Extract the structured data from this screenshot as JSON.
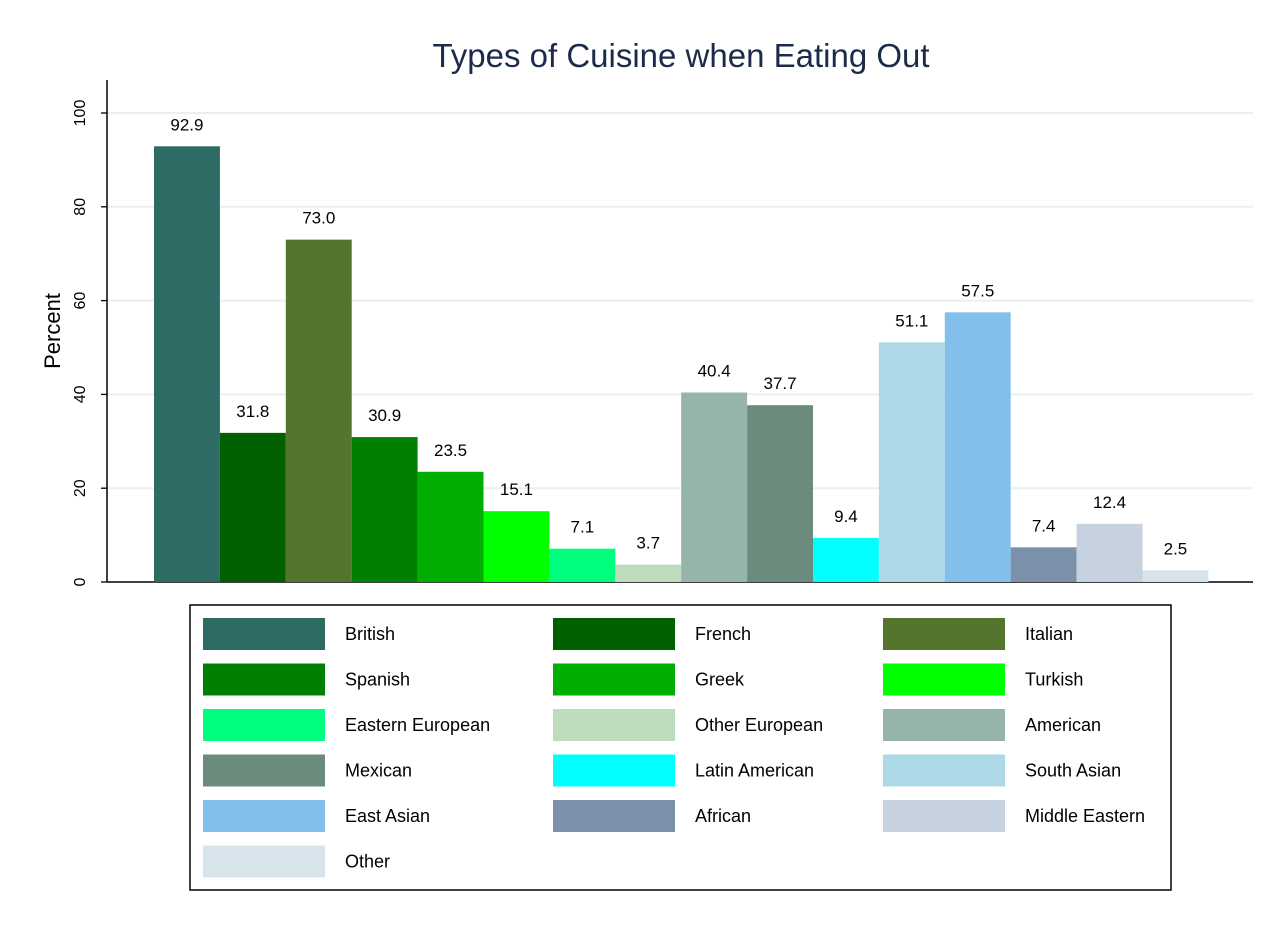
{
  "chart_data": {
    "type": "bar",
    "title": "Types of Cuisine when Eating Out",
    "ylabel": "Percent",
    "xlabel": "",
    "ylim": [
      0,
      106
    ],
    "yticks": [
      0,
      20,
      40,
      60,
      80,
      100
    ],
    "grid": true,
    "legend_position": "bottom",
    "series": [
      {
        "name": "British",
        "value": 92.9,
        "label": "92.9",
        "color": "#2e6b64"
      },
      {
        "name": "French",
        "value": 31.8,
        "label": "31.8",
        "color": "#006000"
      },
      {
        "name": "Italian",
        "value": 73.0,
        "label": "73.0",
        "color": "#55752f"
      },
      {
        "name": "Spanish",
        "value": 30.9,
        "label": "30.9",
        "color": "#008000"
      },
      {
        "name": "Greek",
        "value": 23.5,
        "label": "23.5",
        "color": "#00ae00"
      },
      {
        "name": "Turkish",
        "value": 15.1,
        "label": "15.1",
        "color": "#00ff00"
      },
      {
        "name": "Eastern European",
        "value": 7.1,
        "label": "7.1",
        "color": "#00ff7f"
      },
      {
        "name": "Other European",
        "value": 3.7,
        "label": "3.7",
        "color": "#bddbbd"
      },
      {
        "name": "American",
        "value": 40.4,
        "label": "40.4",
        "color": "#96b4ac"
      },
      {
        "name": "Mexican",
        "value": 37.7,
        "label": "37.7",
        "color": "#6b8c7d"
      },
      {
        "name": "Latin American",
        "value": 9.4,
        "label": "9.4",
        "color": "#00ffff"
      },
      {
        "name": "South Asian",
        "value": 51.1,
        "label": "51.1",
        "color": "#add8e6"
      },
      {
        "name": "East Asian",
        "value": 57.5,
        "label": "57.5",
        "color": "#82bfea"
      },
      {
        "name": "African",
        "value": 7.4,
        "label": "7.4",
        "color": "#7b91aa"
      },
      {
        "name": "Middle Eastern",
        "value": 12.4,
        "label": "12.4",
        "color": "#c6d2df"
      },
      {
        "name": "Other",
        "value": 2.5,
        "label": "2.5",
        "color": "#d8e4ec"
      }
    ]
  }
}
